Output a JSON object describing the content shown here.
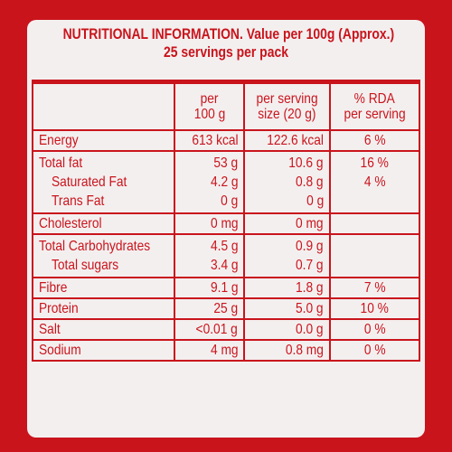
{
  "header": {
    "line1": "NUTRITIONAL INFORMATION. Value per 100g (Approx.)",
    "line2": "25 servings per pack"
  },
  "columns": {
    "per100_l1": "per",
    "per100_l2": "100 g",
    "serving_l1": "per serving",
    "serving_l2": "size (20 g)",
    "rda_l1": "% RDA",
    "rda_l2": "per serving"
  },
  "rows": {
    "energy": {
      "name": "Energy",
      "per100": "613 kcal",
      "serving": "122.6 kcal",
      "rda": "6 %"
    },
    "fat": {
      "name": "Total fat",
      "per100": "53 g",
      "serving": "10.6 g",
      "rda": "16 %",
      "sat_name": "Saturated Fat",
      "sat_per100": "4.2 g",
      "sat_serving": "0.8 g",
      "sat_rda": "4 %",
      "trans_name": "Trans Fat",
      "trans_per100": "0 g",
      "trans_serving": "0 g"
    },
    "cholesterol": {
      "name": "Cholesterol",
      "per100": "0 mg",
      "serving": "0 mg"
    },
    "carbs": {
      "name": "Total Carbohydrates",
      "per100": "4.5 g",
      "serving": "0.9 g",
      "sugars_name": "Total sugars",
      "sugars_per100": "3.4 g",
      "sugars_serving": "0.7 g"
    },
    "fibre": {
      "name": "Fibre",
      "per100": "9.1 g",
      "serving": "1.8 g",
      "rda": "7 %"
    },
    "protein": {
      "name": "Protein",
      "per100": "25 g",
      "serving": "5.0 g",
      "rda": "10 %"
    },
    "salt": {
      "name": "Salt",
      "per100": "<0.01 g",
      "serving": "0.0 g",
      "rda": "0 %"
    },
    "sodium": {
      "name": "Sodium",
      "per100": "4 mg",
      "serving": "0.8 mg",
      "rda": "0 %"
    }
  }
}
